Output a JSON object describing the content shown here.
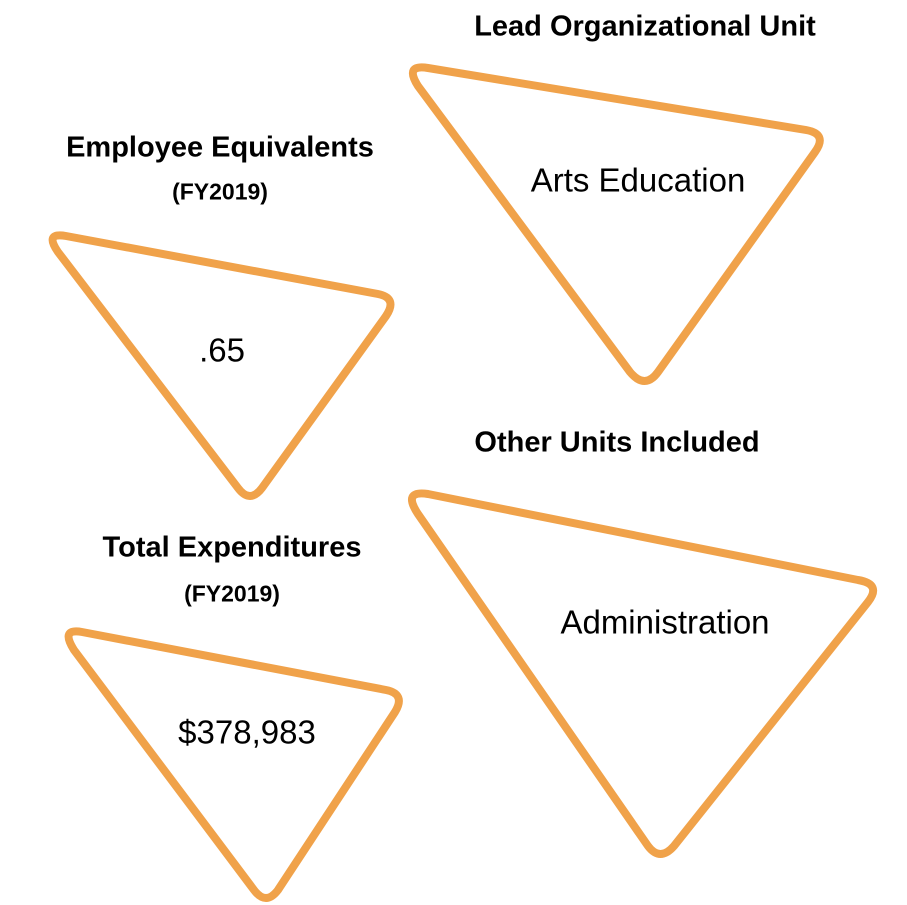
{
  "items": [
    {
      "title": "Lead Organizational Unit",
      "value": "Arts Education"
    },
    {
      "title": "Employee Equivalents",
      "subtitle": "(FY2019)",
      "value": ".65"
    },
    {
      "title": "Other Units Included",
      "value": "Administration"
    },
    {
      "title": "Total Expenditures",
      "subtitle": "(FY2019)",
      "value": "$378,983"
    }
  ]
}
